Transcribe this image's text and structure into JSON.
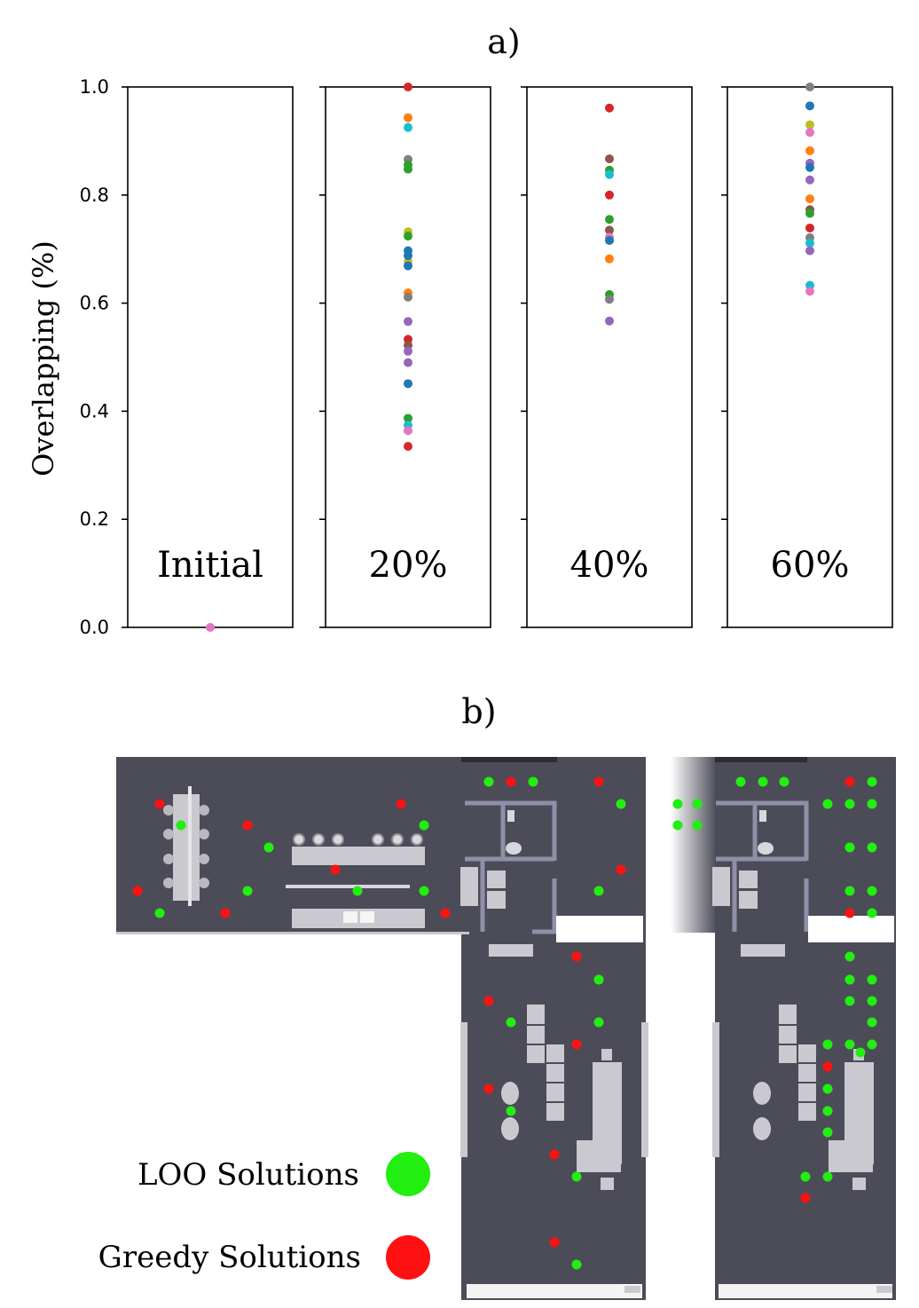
{
  "panel_a": {
    "label": "a)"
  },
  "panel_b": {
    "label": "b)"
  },
  "legend": {
    "items": [
      {
        "label": "LOO Solutions",
        "color": "#22ee11"
      },
      {
        "label": "Greedy Solutions",
        "color": "#ff1111"
      }
    ]
  },
  "palette": [
    "#1f77b4",
    "#ff7f0e",
    "#2ca02c",
    "#d62728",
    "#9467bd",
    "#8c564b",
    "#e377c2",
    "#7f7f7f",
    "#bcbd22",
    "#17becf"
  ],
  "chart_data": {
    "type": "scatter",
    "ylabel": "Overlapping (%)",
    "ylim": [
      0,
      1
    ],
    "yticks": [
      "0.0",
      "0.2",
      "0.4",
      "0.6",
      "0.8",
      "1.0"
    ],
    "panels": [
      {
        "name": "Initial",
        "values": [
          0.0
        ],
        "colors": [
          "#e377c2"
        ]
      },
      {
        "name": "20%",
        "values": [
          1.0,
          0.943,
          0.925,
          0.866,
          0.856,
          0.848,
          0.732,
          0.724,
          0.677,
          0.697,
          0.688,
          0.669,
          0.619,
          0.611,
          0.566,
          0.533,
          0.522,
          0.511,
          0.49,
          0.451,
          0.387,
          0.374,
          0.364,
          0.335
        ],
        "colors": [
          "#d62728",
          "#ff7f0e",
          "#17becf",
          "#7f7f7f",
          "#2ca02c",
          "#2ca02c",
          "#bcbd22",
          "#2ca02c",
          "#bcbd22",
          "#1f77b4",
          "#1f77b4",
          "#1f77b4",
          "#ff7f0e",
          "#7f7f7f",
          "#9467bd",
          "#d62728",
          "#8c564b",
          "#9467bd",
          "#9467bd",
          "#1f77b4",
          "#2ca02c",
          "#17becf",
          "#e377c2",
          "#d62728"
        ]
      },
      {
        "name": "40%",
        "values": [
          0.961,
          0.867,
          0.846,
          0.838,
          0.8,
          0.755,
          0.735,
          0.722,
          0.716,
          0.682,
          0.616,
          0.607,
          0.567
        ],
        "colors": [
          "#d62728",
          "#8c564b",
          "#2ca02c",
          "#17becf",
          "#d62728",
          "#2ca02c",
          "#8c564b",
          "#e377c2",
          "#1f77b4",
          "#ff7f0e",
          "#2ca02c",
          "#7f7f7f",
          "#9467bd"
        ]
      },
      {
        "name": "60%",
        "values": [
          1.0,
          0.965,
          0.93,
          0.916,
          0.882,
          0.859,
          0.851,
          0.828,
          0.793,
          0.773,
          0.766,
          0.739,
          0.721,
          0.711,
          0.697,
          0.633,
          0.622
        ],
        "colors": [
          "#7f7f7f",
          "#1f77b4",
          "#bcbd22",
          "#e377c2",
          "#ff7f0e",
          "#9467bd",
          "#1f77b4",
          "#9467bd",
          "#ff7f0e",
          "#8c564b",
          "#2ca02c",
          "#d62728",
          "#7f7f7f",
          "#17becf",
          "#9467bd",
          "#17becf",
          "#e377c2"
        ]
      }
    ]
  },
  "floorplans": [
    {
      "loo": [
        [
          551,
          881
        ],
        [
          601,
          881
        ],
        [
          204,
          930
        ],
        [
          303,
          955
        ],
        [
          478,
          930
        ],
        [
          700,
          906
        ],
        [
          279,
          1004
        ],
        [
          403,
          1004
        ],
        [
          478,
          1004
        ],
        [
          675,
          1004
        ],
        [
          180,
          1029
        ],
        [
          675,
          1104
        ],
        [
          576,
          1152
        ],
        [
          675,
          1152
        ],
        [
          576,
          1252
        ],
        [
          650,
          1326
        ],
        [
          650,
          1425
        ]
      ],
      "greedy": [
        [
          576,
          881
        ],
        [
          675,
          881
        ],
        [
          180,
          906
        ],
        [
          452,
          906
        ],
        [
          279,
          930
        ],
        [
          378,
          980
        ],
        [
          155,
          1004
        ],
        [
          700,
          980
        ],
        [
          254,
          1029
        ],
        [
          502,
          1029
        ],
        [
          650,
          1078
        ],
        [
          551,
          1128
        ],
        [
          650,
          1177
        ],
        [
          551,
          1227
        ],
        [
          625,
          1301
        ],
        [
          625,
          1400
        ]
      ]
    },
    {
      "loo": [
        [
          835,
          881
        ],
        [
          860,
          881
        ],
        [
          884,
          881
        ],
        [
          983,
          881
        ],
        [
          933,
          906
        ],
        [
          958,
          906
        ],
        [
          983,
          906
        ],
        [
          764,
          906
        ],
        [
          786,
          906
        ],
        [
          764,
          930
        ],
        [
          786,
          930
        ],
        [
          958,
          955
        ],
        [
          983,
          955
        ],
        [
          958,
          1004
        ],
        [
          983,
          1004
        ],
        [
          983,
          1029
        ],
        [
          958,
          1078
        ],
        [
          958,
          1104
        ],
        [
          983,
          1104
        ],
        [
          958,
          1128
        ],
        [
          983,
          1128
        ],
        [
          983,
          1152
        ],
        [
          933,
          1177
        ],
        [
          958,
          1177
        ],
        [
          983,
          1177
        ],
        [
          970,
          1186
        ],
        [
          933,
          1227
        ],
        [
          933,
          1252
        ],
        [
          933,
          1276
        ],
        [
          908,
          1326
        ],
        [
          933,
          1326
        ]
      ],
      "greedy": [
        [
          958,
          881
        ],
        [
          958,
          1029
        ],
        [
          933,
          1202
        ],
        [
          908,
          1350
        ]
      ]
    }
  ]
}
